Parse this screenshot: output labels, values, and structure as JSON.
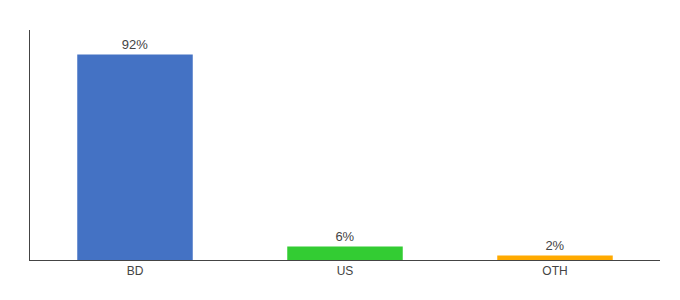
{
  "chart_data": {
    "type": "bar",
    "categories": [
      "BD",
      "US",
      "OTH"
    ],
    "values": [
      92,
      6,
      2
    ],
    "value_labels": [
      "92%",
      "6%",
      "2%"
    ],
    "data_labels": true,
    "colors": [
      "#4472c4",
      "#33cc33",
      "#ffaa00"
    ],
    "ylim": [
      0,
      103
    ],
    "grid": false,
    "tick_labels": "x"
  }
}
